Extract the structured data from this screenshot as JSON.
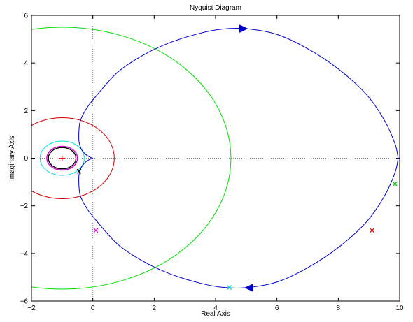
{
  "chart_data": {
    "type": "line",
    "title": "Nyquist Diagram",
    "xlabel": "Real Axis",
    "ylabel": "Imaginary Axis",
    "xlim": [
      -2,
      10
    ],
    "ylim": [
      -6,
      6
    ],
    "xticks": [
      -2,
      0,
      2,
      4,
      6,
      8,
      10
    ],
    "yticks": [
      -6,
      -4,
      -2,
      0,
      2,
      4,
      6
    ],
    "xtick_labels": [
      "−2",
      "0",
      "2",
      "4",
      "6",
      "8",
      "10"
    ],
    "ytick_labels": [
      "−6",
      "−4",
      "−2",
      "0",
      "2",
      "4",
      "6"
    ],
    "grid": false,
    "legend": null,
    "zero_lines": {
      "color": "#888888",
      "style": "dotted"
    },
    "critical_point": {
      "x": -1,
      "y": 0,
      "marker": "+",
      "color": "#ff0000"
    },
    "circles": [
      {
        "cx": -1,
        "cy": 0,
        "r": 5.5,
        "color": "#00e000"
      },
      {
        "cx": -1,
        "cy": 0,
        "r": 1.7,
        "color": "#d00000"
      },
      {
        "cx": -1,
        "cy": 0,
        "r": 0.72,
        "color": "#00e0e0"
      },
      {
        "cx": -1,
        "cy": 0,
        "r": 0.5,
        "color": "#d000d0"
      },
      {
        "cx": -1,
        "cy": 0,
        "r": 0.45,
        "color": "#000000"
      }
    ],
    "nyquist_curve": {
      "color": "#0000cc",
      "upper": [
        [
          0,
          0
        ],
        [
          -0.1,
          0.05
        ],
        [
          -0.25,
          0.18
        ],
        [
          -0.38,
          0.4
        ],
        [
          -0.45,
          0.7
        ],
        [
          -0.45,
          1.2
        ],
        [
          -0.4,
          1.6
        ],
        [
          -0.2,
          2.1
        ],
        [
          0.1,
          2.6
        ],
        [
          0.8,
          3.6
        ],
        [
          1.6,
          4.3
        ],
        [
          2.5,
          4.85
        ],
        [
          3.5,
          5.25
        ],
        [
          4.2,
          5.42
        ],
        [
          5.0,
          5.44
        ],
        [
          6.0,
          5.2
        ],
        [
          7.0,
          4.6
        ],
        [
          8.0,
          3.75
        ],
        [
          8.9,
          2.7
        ],
        [
          9.5,
          1.6
        ],
        [
          9.85,
          0.6
        ],
        [
          9.95,
          0
        ]
      ],
      "arrows": [
        {
          "x": 4.9,
          "y": 5.44,
          "direction": "right"
        },
        {
          "x": 5.1,
          "y": -5.44,
          "direction": "left"
        }
      ]
    },
    "markers": [
      {
        "x": 9.85,
        "y": -1.08,
        "symbol": "x",
        "color": "#00cc00"
      },
      {
        "x": 9.1,
        "y": -3.03,
        "symbol": "x",
        "color": "#dd0000"
      },
      {
        "x": 4.45,
        "y": -5.43,
        "symbol": "x",
        "color": "#00cccc"
      },
      {
        "x": 0.1,
        "y": -3.03,
        "symbol": "x",
        "color": "#dd00dd"
      },
      {
        "x": -0.45,
        "y": -0.55,
        "symbol": "x",
        "color": "#000000"
      }
    ]
  }
}
